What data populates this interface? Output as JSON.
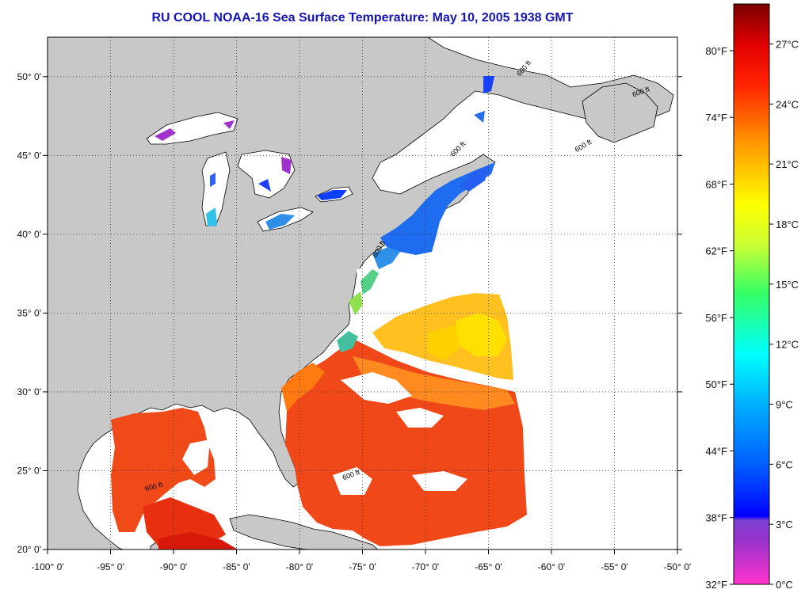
{
  "title": "RU COOL  NOAA-16  Sea Surface Temperature:  May 10, 2005 1938 GMT",
  "map": {
    "lon_range": [
      -100,
      -50
    ],
    "lat_range": [
      20,
      52.5
    ],
    "lon_ticks": [
      {
        "value": -100,
        "label": "-100° 0'"
      },
      {
        "value": -95,
        "label": "-95° 0'"
      },
      {
        "value": -90,
        "label": "-90° 0'"
      },
      {
        "value": -85,
        "label": "-85° 0'"
      },
      {
        "value": -80,
        "label": "-80° 0'"
      },
      {
        "value": -75,
        "label": "-75° 0'"
      },
      {
        "value": -70,
        "label": "-70° 0'"
      },
      {
        "value": -65,
        "label": "-65° 0'"
      },
      {
        "value": -60,
        "label": "-60° 0'"
      },
      {
        "value": -55,
        "label": "-55° 0'"
      },
      {
        "value": -50,
        "label": "-50° 0'"
      }
    ],
    "lat_ticks": [
      {
        "value": 20,
        "label": "20° 0'"
      },
      {
        "value": 25,
        "label": "25° 0'"
      },
      {
        "value": 30,
        "label": "30° 0'"
      },
      {
        "value": 35,
        "label": "35° 0'"
      },
      {
        "value": 40,
        "label": "40° 0'"
      },
      {
        "value": 45,
        "label": "45° 0'"
      },
      {
        "value": 50,
        "label": "50° 0'"
      }
    ],
    "grid": "dotted",
    "contour_label": "600 ft",
    "colors": {
      "land": "#c8c8c8",
      "no_data": "#ffffff",
      "coast": "#000000"
    }
  },
  "colorbar": {
    "celsius_range": [
      0,
      29
    ],
    "fahrenheit_labels": [
      "32°F",
      "38°F",
      "44°F",
      "50°F",
      "56°F",
      "62°F",
      "68°F",
      "74°F",
      "80°F"
    ],
    "celsius_labels": [
      "0°C",
      "3°C",
      "6°C",
      "9°C",
      "12°C",
      "15°C",
      "18°C",
      "21°C",
      "24°C",
      "27°C"
    ],
    "stops": [
      {
        "c": 0,
        "color": "#ff33cc"
      },
      {
        "c": 2.2,
        "color": "#9933cc"
      },
      {
        "c": 3.2,
        "color": "#7a3fd0"
      },
      {
        "c": 3.4,
        "color": "#0000ff"
      },
      {
        "c": 6,
        "color": "#0060ff"
      },
      {
        "c": 9,
        "color": "#00b0ff"
      },
      {
        "c": 11.5,
        "color": "#00ffff"
      },
      {
        "c": 14.5,
        "color": "#33ff66"
      },
      {
        "c": 17,
        "color": "#ccff33"
      },
      {
        "c": 19,
        "color": "#ffff00"
      },
      {
        "c": 22,
        "color": "#ff9900"
      },
      {
        "c": 25,
        "color": "#ff2200"
      },
      {
        "c": 27,
        "color": "#e00000"
      },
      {
        "c": 29,
        "color": "#7a0000"
      }
    ]
  }
}
